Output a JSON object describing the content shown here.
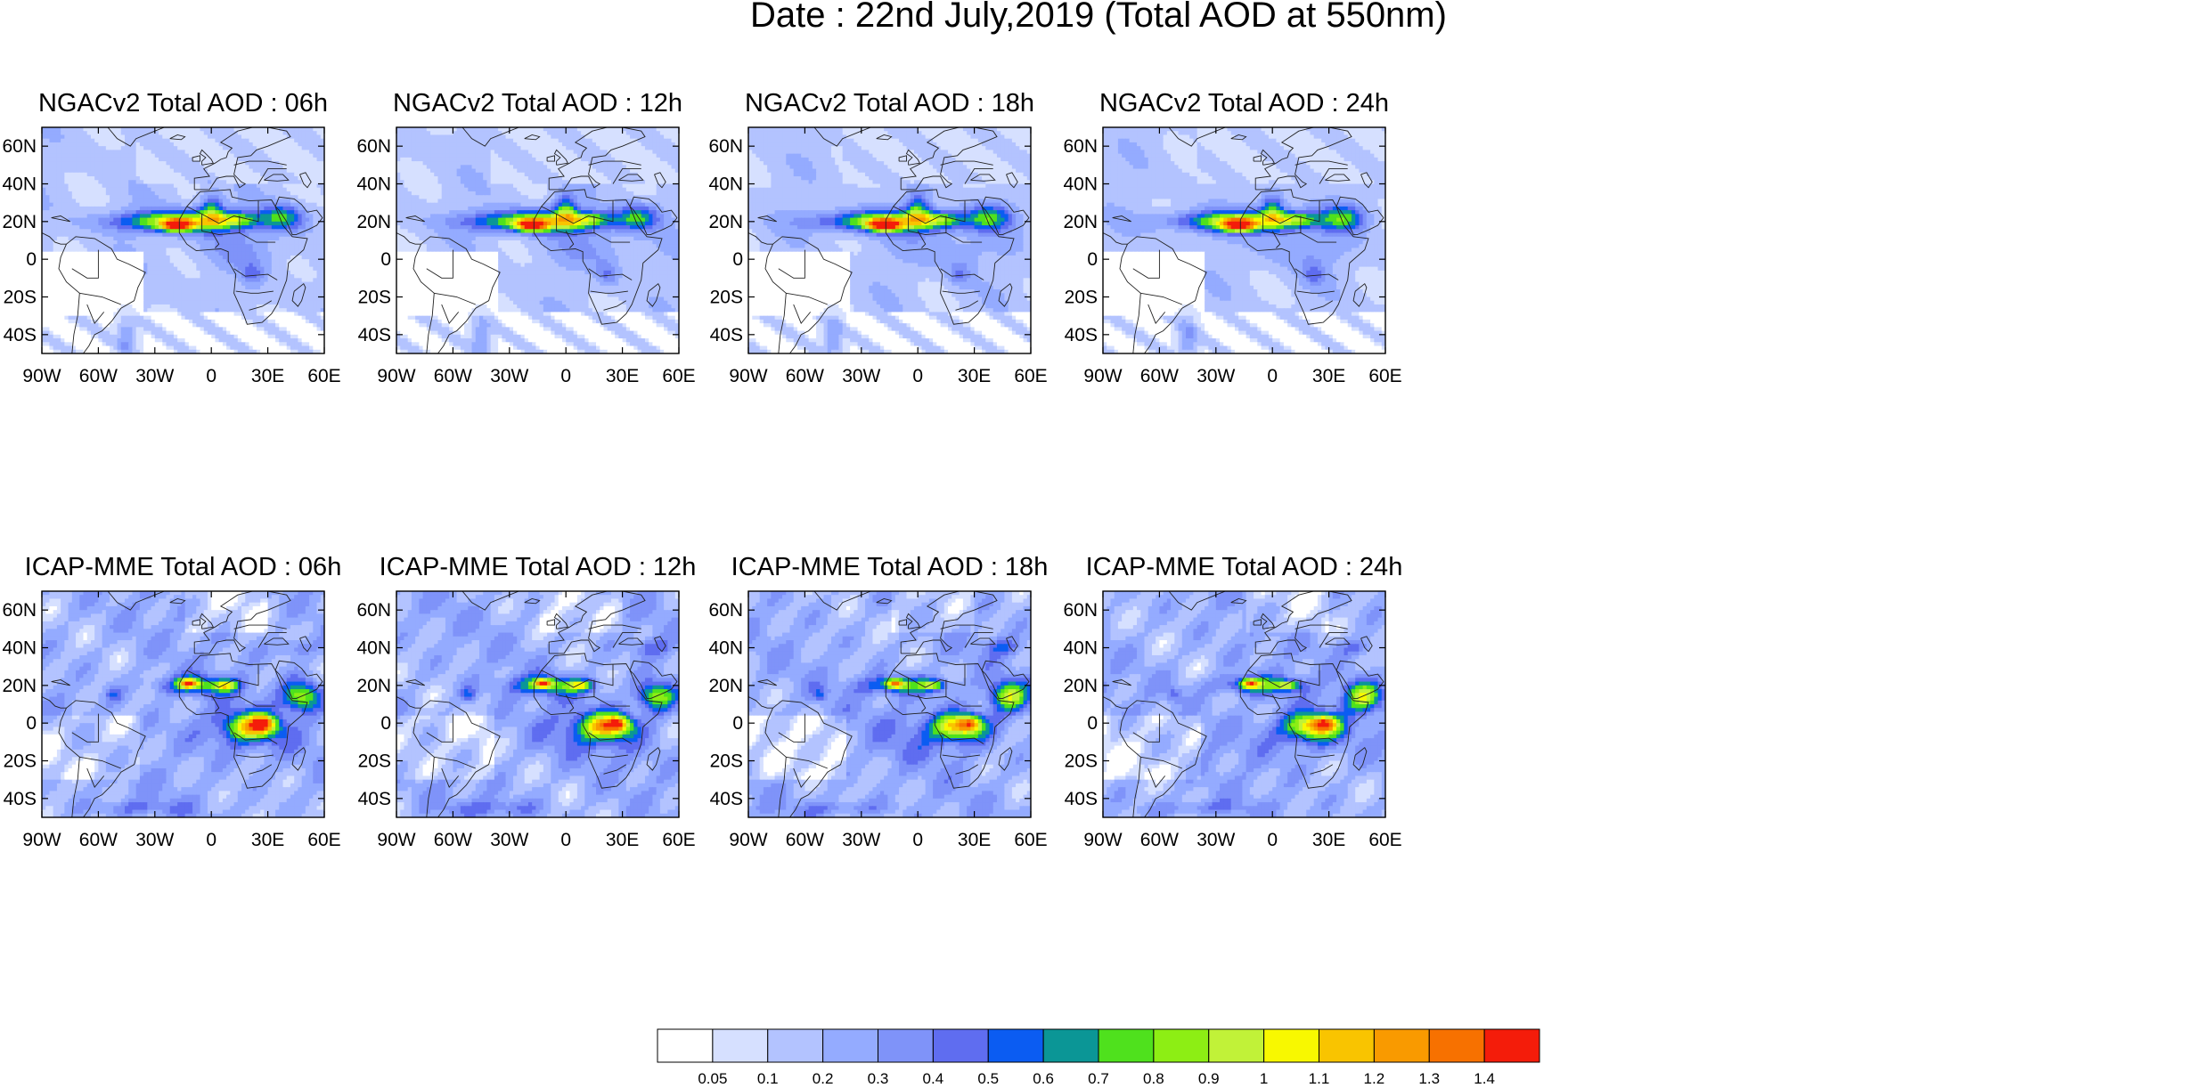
{
  "chart_data": {
    "type": "heatmap",
    "title": "Date : 22nd July,2019 (Total AOD at 550nm)",
    "panels": [
      {
        "title": "NGACv2 Total AOD : 06h",
        "model": "NGACv2",
        "lead": "06h"
      },
      {
        "title": "NGACv2 Total AOD : 12h",
        "model": "NGACv2",
        "lead": "12h"
      },
      {
        "title": "NGACv2 Total AOD : 18h",
        "model": "NGACv2",
        "lead": "18h"
      },
      {
        "title": "NGACv2 Total AOD : 24h",
        "model": "NGACv2",
        "lead": "24h"
      },
      {
        "title": "ICAP-MME Total AOD : 06h",
        "model": "ICAP-MME",
        "lead": "06h"
      },
      {
        "title": "ICAP-MME Total AOD : 12h",
        "model": "ICAP-MME",
        "lead": "12h"
      },
      {
        "title": "ICAP-MME Total AOD : 18h",
        "model": "ICAP-MME",
        "lead": "18h"
      },
      {
        "title": "ICAP-MME Total AOD : 24h",
        "model": "ICAP-MME",
        "lead": "24h"
      }
    ],
    "xlim": [
      -90,
      60
    ],
    "ylim": [
      -50,
      70
    ],
    "x_ticks": [
      {
        "value": -90,
        "label": "90W"
      },
      {
        "value": -60,
        "label": "60W"
      },
      {
        "value": -30,
        "label": "30W"
      },
      {
        "value": 0,
        "label": "0"
      },
      {
        "value": 30,
        "label": "30E"
      },
      {
        "value": 60,
        "label": "60E"
      }
    ],
    "y_ticks": [
      {
        "value": 60,
        "label": "60N"
      },
      {
        "value": 40,
        "label": "40N"
      },
      {
        "value": 20,
        "label": "20N"
      },
      {
        "value": 0,
        "label": "0"
      },
      {
        "value": -20,
        "label": "20S"
      },
      {
        "value": -40,
        "label": "40S"
      }
    ],
    "colorbar": {
      "labels": [
        "0.05",
        "0.1",
        "0.2",
        "0.3",
        "0.4",
        "0.5",
        "0.6",
        "0.7",
        "0.8",
        "0.9",
        "1",
        "1.1",
        "1.2",
        "1.3",
        "1.4"
      ],
      "levels": [
        0.05,
        0.1,
        0.2,
        0.3,
        0.4,
        0.5,
        0.6,
        0.7,
        0.8,
        0.9,
        1.0,
        1.1,
        1.2,
        1.3,
        1.4
      ],
      "colors": [
        "#ffffff",
        "#d6e0ff",
        "#b3c3ff",
        "#94abff",
        "#7f93f9",
        "#5f6df0",
        "#0b5cf2",
        "#0b9696",
        "#4fe11d",
        "#8dee14",
        "#c1f238",
        "#f8f800",
        "#f9c400",
        "#f99a00",
        "#f77100",
        "#f41c0a"
      ]
    }
  }
}
